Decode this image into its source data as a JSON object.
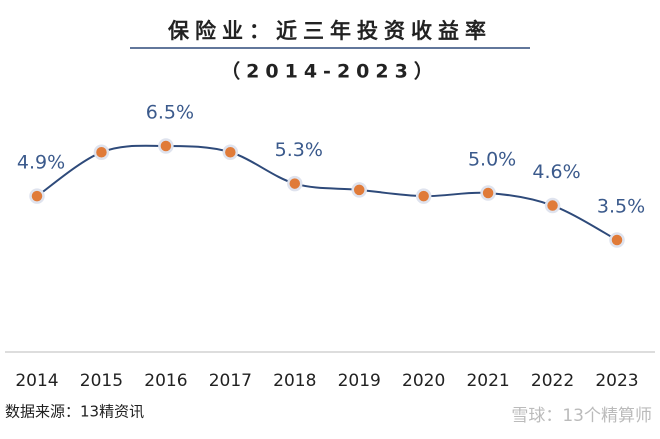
{
  "chart_data": {
    "type": "line",
    "title": "保险业：近三年投资收益率",
    "subtitle": "（2014-2023）",
    "categories": [
      "2014",
      "2015",
      "2016",
      "2017",
      "2018",
      "2019",
      "2020",
      "2021",
      "2022",
      "2023"
    ],
    "values": [
      4.9,
      6.3,
      6.5,
      6.3,
      5.3,
      5.1,
      4.9,
      5.0,
      4.6,
      3.5
    ],
    "value_labels": [
      "4.9%",
      null,
      "6.5%",
      null,
      "5.3%",
      null,
      null,
      "5.0%",
      "4.6%",
      "3.5%"
    ],
    "color": "#2e4a7a",
    "marker_color": "#e07b39",
    "source": "数据来源：13精资讯",
    "watermark": "雪球：13个精算师"
  }
}
